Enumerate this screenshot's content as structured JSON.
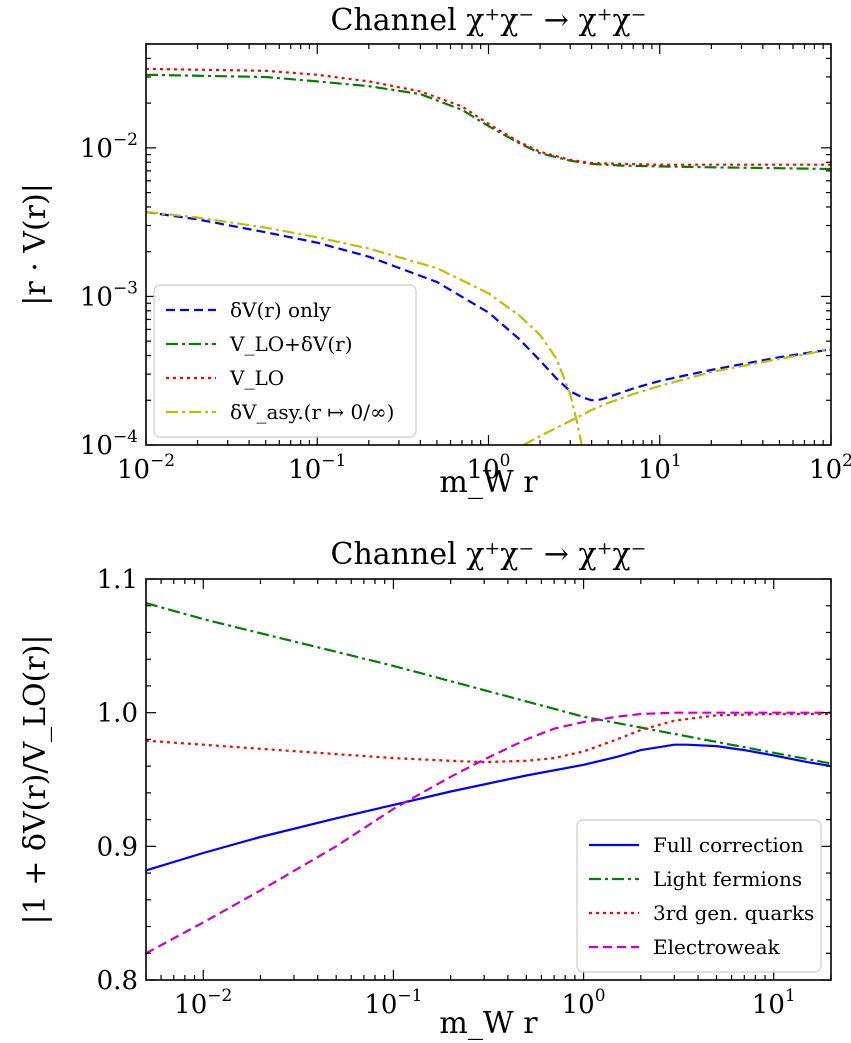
{
  "chart_data": [
    {
      "type": "line",
      "title": "Channel χ⁺χ⁻ → χ⁺χ⁻",
      "xlabel": "m_W r",
      "ylabel": "|r · V(r)|",
      "xscale": "log",
      "yscale": "log",
      "xlim": [
        0.01,
        100
      ],
      "ylim": [
        0.0001,
        0.05
      ],
      "legend_loc": "lower-left",
      "x_ticks": [
        {
          "v": 0.01,
          "b": "10",
          "e": "−2"
        },
        {
          "v": 0.1,
          "b": "10",
          "e": "−1"
        },
        {
          "v": 1,
          "b": "10",
          "e": "0"
        },
        {
          "v": 10,
          "b": "10",
          "e": "1"
        },
        {
          "v": 100,
          "b": "10",
          "e": "2"
        }
      ],
      "y_ticks": [
        {
          "v": 0.0001,
          "b": "10",
          "e": "−4"
        },
        {
          "v": 0.001,
          "b": "10",
          "e": "−3"
        },
        {
          "v": 0.01,
          "b": "10",
          "e": "−2"
        }
      ],
      "series": [
        {
          "name": "δV(r) only",
          "color": "#0000ff",
          "dash": "9,5",
          "x": [
            0.01,
            0.02,
            0.05,
            0.1,
            0.2,
            0.5,
            1,
            1.5,
            2,
            2.5,
            3,
            3.5,
            4,
            4.5,
            5,
            7,
            10,
            20,
            50,
            100
          ],
          "y": [
            0.0037,
            0.0033,
            0.0027,
            0.0023,
            0.00185,
            0.00125,
            0.00078,
            0.00052,
            0.00037,
            0.00028,
            0.00023,
            0.00021,
            0.0002,
            0.000202,
            0.00021,
            0.00024,
            0.00027,
            0.00032,
            0.00039,
            0.00044
          ]
        },
        {
          "name": "V_LO+δV(r)",
          "color": "#008000",
          "dash": "12,4,3,4",
          "x": [
            0.01,
            0.05,
            0.1,
            0.2,
            0.4,
            0.7,
            1,
            1.5,
            2,
            3,
            4,
            6,
            10,
            20,
            50,
            100
          ],
          "y": [
            0.031,
            0.03,
            0.028,
            0.026,
            0.023,
            0.018,
            0.014,
            0.0108,
            0.0092,
            0.0082,
            0.0078,
            0.0076,
            0.0075,
            0.0074,
            0.0073,
            0.0072
          ],
          "x2": [],
          "y2": []
        },
        {
          "name": "V_LO",
          "color": "#ff0000",
          "dash": "3,4",
          "x": [
            0.01,
            0.05,
            0.1,
            0.2,
            0.4,
            0.7,
            1,
            1.5,
            2,
            3,
            4,
            6,
            10,
            20,
            50,
            100
          ],
          "y": [
            0.034,
            0.033,
            0.031,
            0.028,
            0.024,
            0.019,
            0.0145,
            0.011,
            0.0094,
            0.0083,
            0.0079,
            0.0078,
            0.0077,
            0.0077,
            0.0077,
            0.0077
          ]
        },
        {
          "name": "δV_asy.(r ↦ 0/∞)",
          "color": "#bfbf00",
          "dash": "12,4,3,4",
          "x": [
            0.01,
            0.02,
            0.05,
            0.1,
            0.2,
            0.5,
            1,
            1.5,
            2,
            2.5,
            3,
            3.3,
            3.5
          ],
          "y": [
            0.0037,
            0.0034,
            0.0029,
            0.0025,
            0.0021,
            0.00155,
            0.00105,
            0.00075,
            0.00055,
            0.00038,
            0.00022,
            0.00014,
            0.0001
          ],
          "x2": [
            1.6,
            2,
            3,
            4,
            5,
            7,
            10,
            20,
            50,
            100
          ],
          "y2": [
            0.0001,
            0.000115,
            0.000145,
            0.000172,
            0.000192,
            0.00022,
            0.00025,
            0.00031,
            0.00038,
            0.00044
          ]
        }
      ]
    },
    {
      "type": "line",
      "title": "Channel χ⁺χ⁻ → χ⁺χ⁻",
      "xlabel": "m_W r",
      "ylabel": "|1 + δV(r)/V_LO(r)|",
      "xscale": "log",
      "yscale": "linear",
      "xlim": [
        0.005,
        20
      ],
      "ylim": [
        0.8,
        1.1
      ],
      "legend_loc": "lower-right",
      "x_ticks": [
        {
          "v": 0.01,
          "b": "10",
          "e": "−2"
        },
        {
          "v": 0.1,
          "b": "10",
          "e": "−1"
        },
        {
          "v": 1,
          "b": "10",
          "e": "0"
        },
        {
          "v": 10,
          "b": "10",
          "e": "1"
        }
      ],
      "y_ticks": [
        {
          "v": 0.8,
          "label": "0.8"
        },
        {
          "v": 0.9,
          "label": "0.9"
        },
        {
          "v": 1.0,
          "label": "1.0"
        },
        {
          "v": 1.1,
          "label": "1.1"
        }
      ],
      "series": [
        {
          "name": "Full correction",
          "color": "#0000ff",
          "dash": "",
          "x": [
            0.005,
            0.01,
            0.02,
            0.05,
            0.1,
            0.2,
            0.5,
            1,
            1.5,
            2,
            3,
            3.5,
            5,
            7,
            10,
            15,
            20
          ],
          "y": [
            0.882,
            0.895,
            0.907,
            0.921,
            0.931,
            0.941,
            0.953,
            0.961,
            0.967,
            0.972,
            0.976,
            0.976,
            0.975,
            0.972,
            0.968,
            0.963,
            0.96
          ]
        },
        {
          "name": "Light fermions",
          "color": "#008000",
          "dash": "12,4,3,4",
          "x": [
            0.005,
            0.01,
            0.1,
            1,
            10,
            20
          ],
          "y": [
            1.082,
            1.07,
            1.035,
            0.997,
            0.97,
            0.962
          ]
        },
        {
          "name": "3rd gen. quarks",
          "color": "#ff0000",
          "dash": "3,4",
          "x": [
            0.005,
            0.01,
            0.02,
            0.05,
            0.1,
            0.2,
            0.3,
            0.5,
            0.7,
            1,
            1.5,
            2,
            3,
            5,
            10,
            20
          ],
          "y": [
            0.979,
            0.976,
            0.973,
            0.969,
            0.966,
            0.964,
            0.963,
            0.964,
            0.966,
            0.971,
            0.98,
            0.987,
            0.994,
            0.998,
            0.999,
            0.999
          ]
        },
        {
          "name": "Electroweak",
          "color": "#cc00cc",
          "dash": "9,5",
          "x": [
            0.005,
            0.01,
            0.02,
            0.05,
            0.1,
            0.2,
            0.3,
            0.5,
            0.7,
            1,
            1.5,
            2,
            3,
            5,
            10,
            20
          ],
          "y": [
            0.82,
            0.843,
            0.867,
            0.9,
            0.928,
            0.952,
            0.965,
            0.98,
            0.988,
            0.993,
            0.997,
            0.999,
            1.0,
            1.0,
            1.0,
            1.0
          ]
        }
      ]
    }
  ]
}
